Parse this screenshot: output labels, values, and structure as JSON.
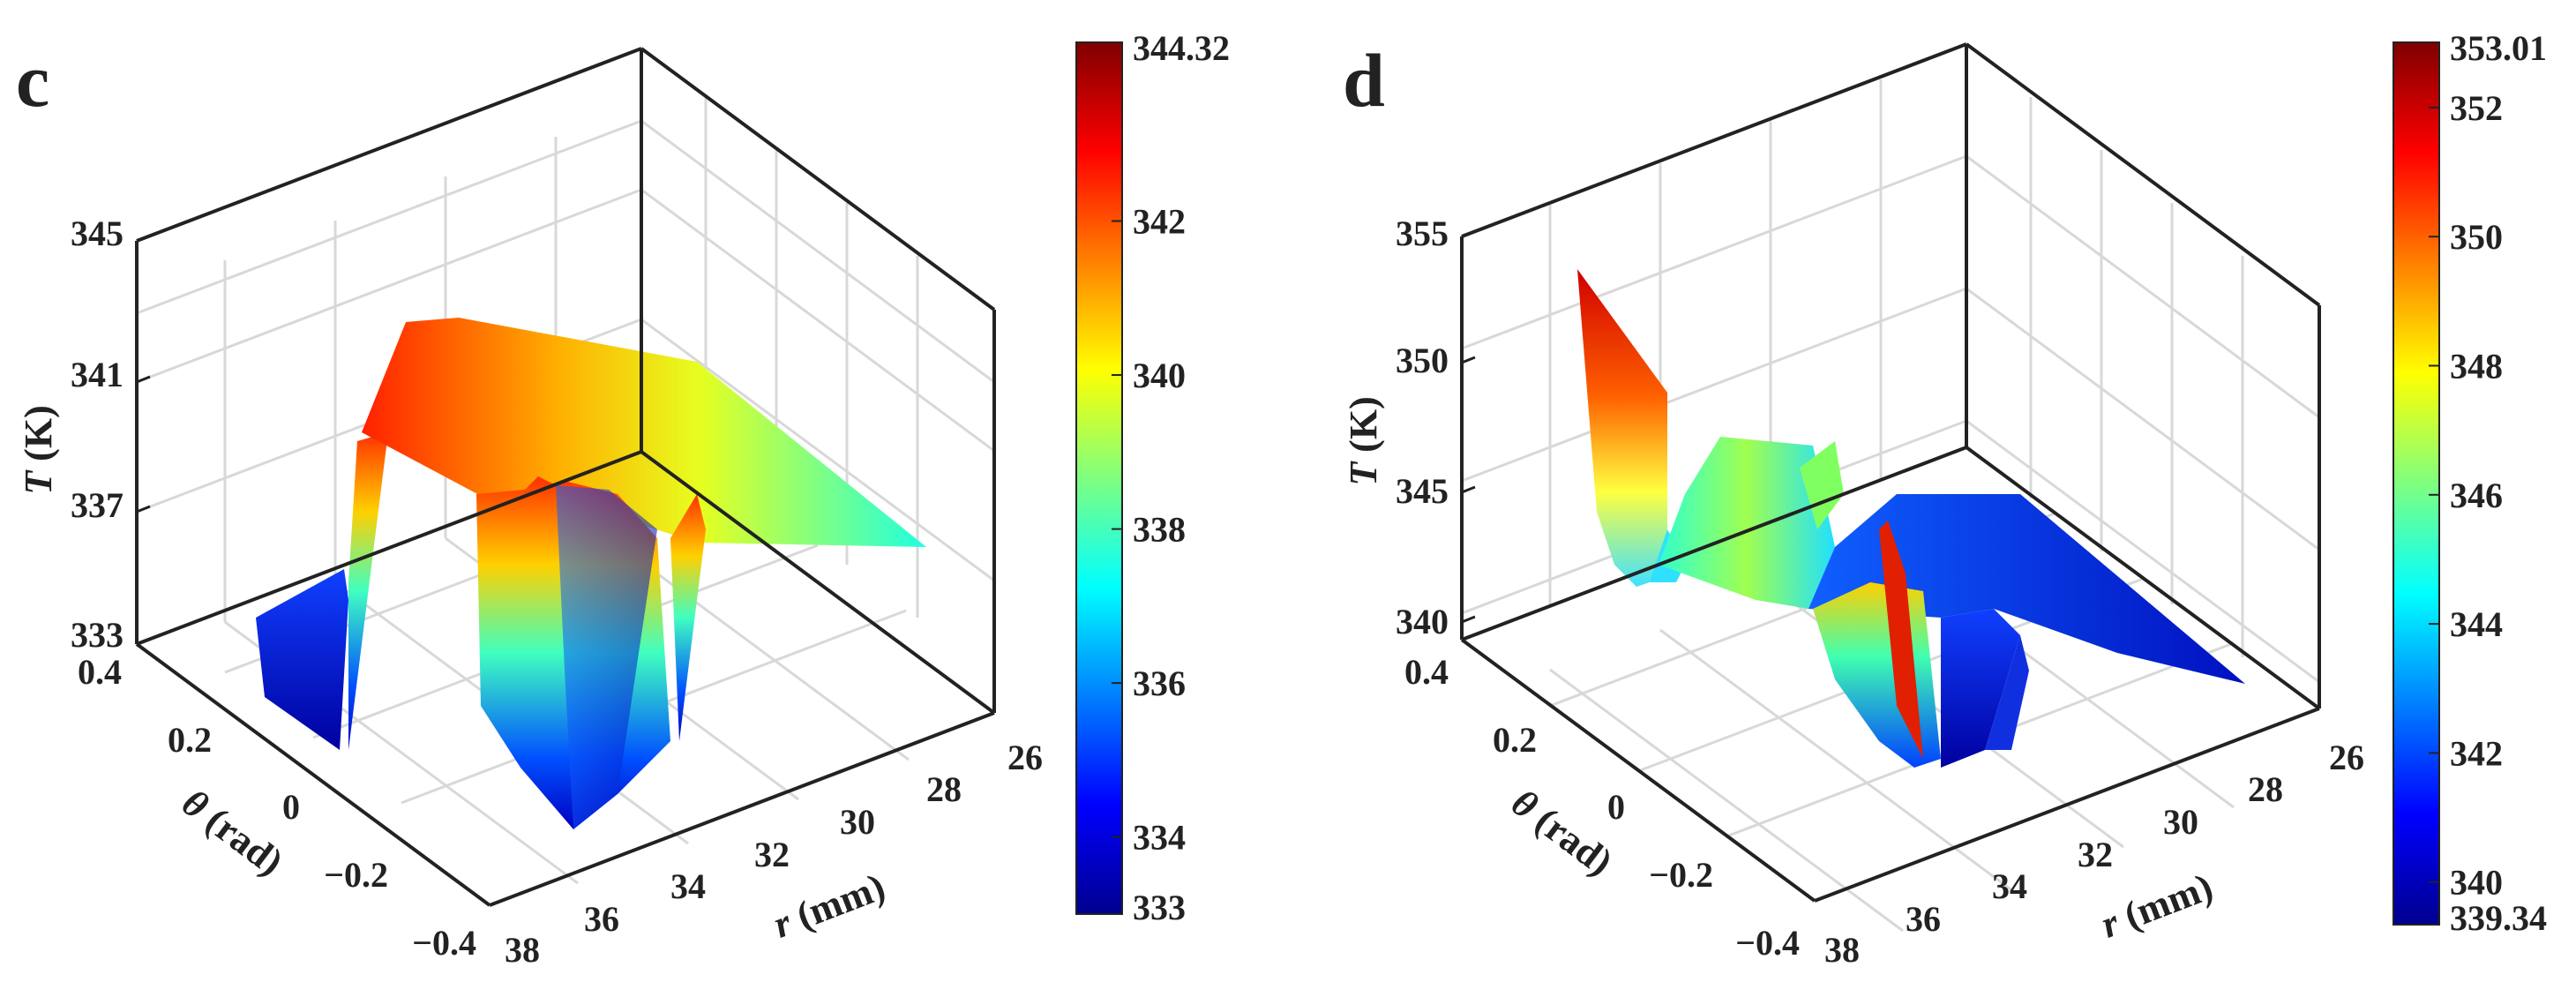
{
  "chart_data": [
    {
      "type": "surface3d",
      "panel_label": "c",
      "zlabel_var": "T",
      "zlabel_unit": " (K)",
      "ylabel_var": "θ",
      "ylabel_unit": " (rad)",
      "xlabel_var": "r",
      "xlabel_unit": " (mm)",
      "z_ticks": [
        "333",
        "337",
        "341",
        "345"
      ],
      "theta_ticks": [
        "0.4",
        "0.2",
        "0",
        "−0.2",
        "−0.4"
      ],
      "r_ticks": [
        "38",
        "36",
        "34",
        "32",
        "30",
        "28",
        "26"
      ],
      "zlim": [
        333,
        345
      ],
      "thetalim": [
        -0.4,
        0.4
      ],
      "rlim": [
        26,
        38
      ],
      "colorbar_range": [
        333,
        344.32
      ],
      "colorbar_ticks": [
        "344.32",
        "342",
        "340",
        "338",
        "336",
        "334",
        "333"
      ],
      "colormap": "jet",
      "surface_note": "temperature peaks (~344 K) near θ≈0.2, r≈32–34 mm; low region (~333 K) near θ≈0.4"
    },
    {
      "type": "surface3d",
      "panel_label": "d",
      "zlabel_var": "T",
      "zlabel_unit": " (K)",
      "ylabel_var": "θ",
      "ylabel_unit": " (rad)",
      "xlabel_var": "r",
      "xlabel_unit": " (mm)",
      "z_ticks": [
        "340",
        "345",
        "350",
        "355"
      ],
      "theta_ticks": [
        "0.4",
        "0.2",
        "0",
        "−0.2",
        "−0.4"
      ],
      "r_ticks": [
        "38",
        "36",
        "34",
        "32",
        "30",
        "28",
        "26"
      ],
      "zlim": [
        339.34,
        355
      ],
      "thetalim": [
        -0.4,
        0.4
      ],
      "rlim": [
        26,
        38
      ],
      "colorbar_range": [
        339.34,
        353.01
      ],
      "colorbar_ticks": [
        "353.01",
        "352",
        "350",
        "348",
        "346",
        "344",
        "342",
        "340",
        "339.34"
      ],
      "colormap": "jet",
      "surface_note": "temperature peaks (~353 K) near θ≈0.4, r≈36 mm; minimum (~339 K) near θ≈−0.2, r≈30 mm"
    }
  ]
}
